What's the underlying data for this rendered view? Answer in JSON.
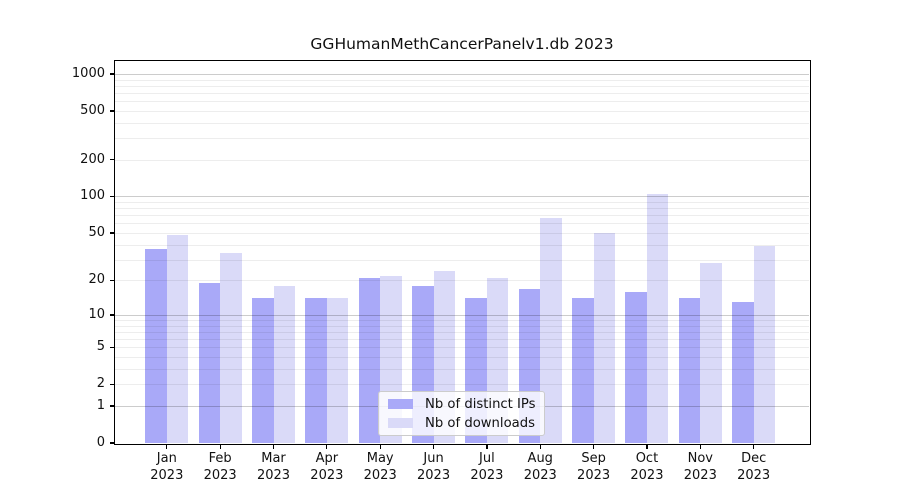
{
  "chart_data": {
    "type": "bar",
    "title": "GGHumanMethCancerPanelv1.db 2023",
    "categories": [
      "Jan",
      "Feb",
      "Mar",
      "Apr",
      "May",
      "Jun",
      "Jul",
      "Aug",
      "Sep",
      "Oct",
      "Nov",
      "Dec"
    ],
    "year_label": "2023",
    "series": [
      {
        "name": "Nb of distinct IPs",
        "color": "#a9a9f8",
        "values": [
          37,
          19,
          14,
          14,
          21,
          18,
          14,
          17,
          14,
          16,
          14,
          13
        ]
      },
      {
        "name": "Nb of downloads",
        "color": "#dadaf8",
        "values": [
          48,
          34,
          18,
          14,
          22,
          24,
          21,
          67,
          50,
          105,
          28,
          39
        ]
      }
    ],
    "y_scale": "log1p",
    "y_ticks": [
      0,
      1,
      2,
      5,
      10,
      20,
      50,
      100,
      200,
      500,
      1000
    ],
    "y_minor_grid": [
      2,
      3,
      4,
      5,
      6,
      7,
      8,
      9,
      20,
      30,
      40,
      50,
      60,
      70,
      80,
      90,
      200,
      300,
      400,
      500,
      600,
      700,
      800,
      900
    ],
    "y_major_grid": [
      1,
      10,
      100,
      1000
    ],
    "ylim": [
      0,
      1200
    ],
    "grid": "horizontal",
    "legend_position": "inside-bottom-center"
  }
}
